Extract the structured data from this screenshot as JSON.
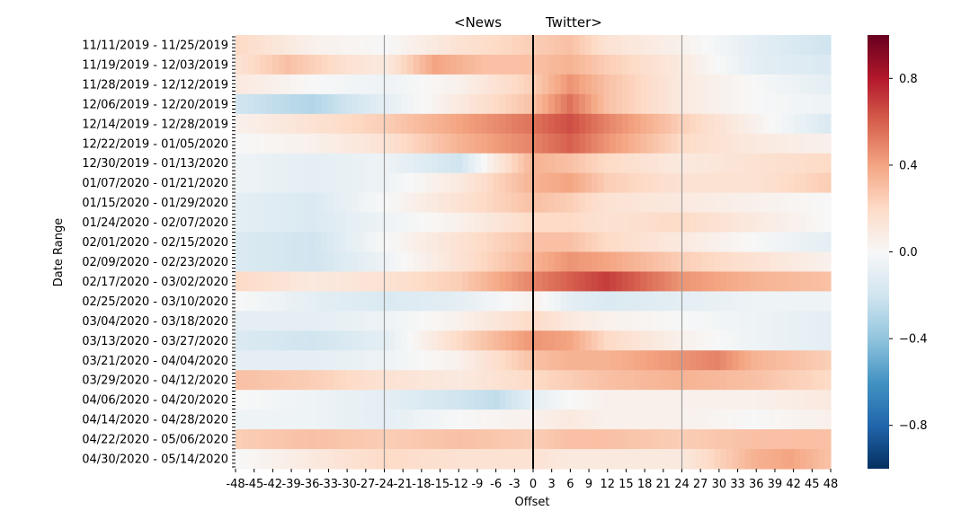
{
  "chart_data": {
    "type": "heatmap",
    "title_left": "<News",
    "title_right": "Twitter>",
    "xlabel": "Offset",
    "ylabel": "Date Range",
    "x_tick_labels": [
      "-48",
      "-45",
      "-42",
      "-39",
      "-36",
      "-33",
      "-30",
      "-27",
      "-24",
      "-21",
      "-18",
      "-15",
      "-12",
      "-9",
      "-6",
      "-3",
      "0",
      "3",
      "6",
      "9",
      "12",
      "15",
      "18",
      "21",
      "24",
      "27",
      "30",
      "33",
      "36",
      "39",
      "42",
      "45",
      "48"
    ],
    "y_tick_labels": [
      "11/11/2019 - 11/25/2019",
      "11/19/2019 - 12/03/2019",
      "11/28/2019 - 12/12/2019",
      "12/06/2019 - 12/20/2019",
      "12/14/2019 - 12/28/2019",
      "12/22/2019 - 01/05/2020",
      "12/30/2019 - 01/13/2020",
      "01/07/2020 - 01/21/2020",
      "01/15/2020 - 01/29/2020",
      "01/24/2020 - 02/07/2020",
      "02/01/2020 - 02/15/2020",
      "02/09/2020 - 02/23/2020",
      "02/17/2020 - 03/02/2020",
      "02/25/2020 - 03/10/2020",
      "03/04/2020 - 03/18/2020",
      "03/13/2020 - 03/27/2020",
      "03/21/2020 - 04/04/2020",
      "03/29/2020 - 04/12/2020",
      "04/06/2020 - 04/20/2020",
      "04/14/2020 - 04/28/2020",
      "04/22/2020 - 05/06/2020",
      "04/30/2020 - 05/14/2020"
    ],
    "x_range": [
      -48,
      48
    ],
    "vlines": [
      -24,
      0,
      24
    ],
    "colorbar": {
      "min": -1.0,
      "max": 1.0,
      "ticks": [
        "0.8",
        "0.4",
        "0.0",
        "−0.4",
        "−0.8"
      ],
      "tick_values": [
        0.8,
        0.4,
        0.0,
        -0.4,
        -0.8
      ],
      "colormap": "RdBu_r"
    },
    "rows": [
      {
        "label": "11/11/2019 - 11/25/2019",
        "anchors": [
          [
            -48,
            0.2
          ],
          [
            -36,
            0.05
          ],
          [
            -24,
            0.0
          ],
          [
            -12,
            0.15
          ],
          [
            0,
            0.25
          ],
          [
            6,
            0.3
          ],
          [
            12,
            0.15
          ],
          [
            24,
            0.05
          ],
          [
            36,
            -0.1
          ],
          [
            48,
            -0.2
          ]
        ]
      },
      {
        "label": "11/19/2019 - 12/03/2019",
        "anchors": [
          [
            -48,
            0.15
          ],
          [
            -40,
            0.3
          ],
          [
            -30,
            0.15
          ],
          [
            -24,
            0.1
          ],
          [
            -16,
            0.4
          ],
          [
            -8,
            0.3
          ],
          [
            0,
            0.3
          ],
          [
            6,
            0.35
          ],
          [
            12,
            0.25
          ],
          [
            24,
            0.1
          ],
          [
            36,
            -0.1
          ],
          [
            48,
            -0.15
          ]
        ]
      },
      {
        "label": "11/28/2019 - 12/12/2019",
        "anchors": [
          [
            -48,
            0.1
          ],
          [
            -36,
            0.0
          ],
          [
            -24,
            -0.05
          ],
          [
            -12,
            0.05
          ],
          [
            0,
            0.25
          ],
          [
            6,
            0.45
          ],
          [
            12,
            0.3
          ],
          [
            24,
            0.1
          ],
          [
            36,
            0.0
          ],
          [
            48,
            -0.1
          ]
        ]
      },
      {
        "label": "12/06/2019 - 12/20/2019",
        "anchors": [
          [
            -48,
            -0.2
          ],
          [
            -36,
            -0.3
          ],
          [
            -24,
            -0.1
          ],
          [
            -12,
            0.1
          ],
          [
            0,
            0.3
          ],
          [
            6,
            0.55
          ],
          [
            12,
            0.3
          ],
          [
            24,
            0.1
          ],
          [
            36,
            0.0
          ],
          [
            48,
            -0.05
          ]
        ]
      },
      {
        "label": "12/14/2019 - 12/28/2019",
        "anchors": [
          [
            -48,
            0.05
          ],
          [
            -36,
            0.15
          ],
          [
            -24,
            0.25
          ],
          [
            -12,
            0.4
          ],
          [
            0,
            0.55
          ],
          [
            6,
            0.65
          ],
          [
            12,
            0.5
          ],
          [
            24,
            0.25
          ],
          [
            36,
            0.05
          ],
          [
            48,
            -0.15
          ]
        ]
      },
      {
        "label": "12/22/2019 - 01/05/2020",
        "anchors": [
          [
            -48,
            0.0
          ],
          [
            -36,
            0.05
          ],
          [
            -24,
            0.15
          ],
          [
            -12,
            0.35
          ],
          [
            0,
            0.5
          ],
          [
            6,
            0.6
          ],
          [
            12,
            0.45
          ],
          [
            24,
            0.2
          ],
          [
            36,
            0.1
          ],
          [
            48,
            0.05
          ]
        ]
      },
      {
        "label": "12/30/2019 - 01/13/2020",
        "anchors": [
          [
            -48,
            -0.05
          ],
          [
            -36,
            -0.1
          ],
          [
            -24,
            -0.05
          ],
          [
            -12,
            -0.2
          ],
          [
            -6,
            0.1
          ],
          [
            0,
            0.35
          ],
          [
            6,
            0.3
          ],
          [
            12,
            0.2
          ],
          [
            24,
            0.1
          ],
          [
            36,
            0.15
          ],
          [
            48,
            0.2
          ]
        ]
      },
      {
        "label": "01/07/2020 - 01/21/2020",
        "anchors": [
          [
            -48,
            -0.05
          ],
          [
            -36,
            -0.1
          ],
          [
            -24,
            -0.05
          ],
          [
            -12,
            0.1
          ],
          [
            0,
            0.35
          ],
          [
            6,
            0.4
          ],
          [
            12,
            0.25
          ],
          [
            24,
            0.15
          ],
          [
            36,
            0.15
          ],
          [
            48,
            0.25
          ]
        ]
      },
      {
        "label": "01/15/2020 - 01/29/2020",
        "anchors": [
          [
            -48,
            -0.1
          ],
          [
            -36,
            -0.15
          ],
          [
            -24,
            0.0
          ],
          [
            -12,
            0.15
          ],
          [
            0,
            0.3
          ],
          [
            6,
            0.25
          ],
          [
            12,
            0.15
          ],
          [
            24,
            0.1
          ],
          [
            36,
            0.05
          ],
          [
            48,
            0.0
          ]
        ]
      },
      {
        "label": "01/24/2020 - 02/07/2020",
        "anchors": [
          [
            -48,
            -0.1
          ],
          [
            -36,
            -0.15
          ],
          [
            -24,
            -0.05
          ],
          [
            -12,
            0.05
          ],
          [
            0,
            0.2
          ],
          [
            6,
            0.2
          ],
          [
            12,
            0.15
          ],
          [
            24,
            0.2
          ],
          [
            36,
            0.1
          ],
          [
            48,
            0.0
          ]
        ]
      },
      {
        "label": "02/01/2020 - 02/15/2020",
        "anchors": [
          [
            -48,
            -0.15
          ],
          [
            -36,
            -0.2
          ],
          [
            -24,
            0.0
          ],
          [
            -12,
            0.15
          ],
          [
            0,
            0.3
          ],
          [
            6,
            0.3
          ],
          [
            12,
            0.2
          ],
          [
            24,
            0.1
          ],
          [
            36,
            0.0
          ],
          [
            48,
            -0.1
          ]
        ]
      },
      {
        "label": "02/09/2020 - 02/23/2020",
        "anchors": [
          [
            -48,
            -0.15
          ],
          [
            -36,
            -0.2
          ],
          [
            -24,
            -0.05
          ],
          [
            -12,
            0.15
          ],
          [
            0,
            0.35
          ],
          [
            6,
            0.45
          ],
          [
            12,
            0.4
          ],
          [
            24,
            0.25
          ],
          [
            36,
            0.15
          ],
          [
            48,
            0.05
          ]
        ]
      },
      {
        "label": "02/17/2020 - 03/02/2020",
        "anchors": [
          [
            -48,
            0.2
          ],
          [
            -36,
            0.1
          ],
          [
            -24,
            0.15
          ],
          [
            -12,
            0.25
          ],
          [
            0,
            0.5
          ],
          [
            6,
            0.6
          ],
          [
            12,
            0.7
          ],
          [
            24,
            0.45
          ],
          [
            36,
            0.35
          ],
          [
            48,
            0.3
          ]
        ]
      },
      {
        "label": "02/25/2020 - 03/10/2020",
        "anchors": [
          [
            -48,
            0.0
          ],
          [
            -36,
            -0.1
          ],
          [
            -24,
            -0.15
          ],
          [
            -12,
            -0.1
          ],
          [
            0,
            0.05
          ],
          [
            6,
            -0.1
          ],
          [
            12,
            -0.15
          ],
          [
            24,
            -0.1
          ],
          [
            36,
            -0.05
          ],
          [
            48,
            -0.05
          ]
        ]
      },
      {
        "label": "03/04/2020 - 03/18/2020",
        "anchors": [
          [
            -48,
            -0.1
          ],
          [
            -36,
            -0.1
          ],
          [
            -24,
            -0.05
          ],
          [
            -12,
            0.05
          ],
          [
            0,
            0.2
          ],
          [
            6,
            0.1
          ],
          [
            12,
            0.05
          ],
          [
            24,
            0.0
          ],
          [
            36,
            -0.05
          ],
          [
            48,
            -0.1
          ]
        ]
      },
      {
        "label": "03/13/2020 - 03/27/2020",
        "anchors": [
          [
            -48,
            -0.15
          ],
          [
            -36,
            -0.2
          ],
          [
            -24,
            -0.1
          ],
          [
            -12,
            0.2
          ],
          [
            0,
            0.45
          ],
          [
            6,
            0.4
          ],
          [
            12,
            0.2
          ],
          [
            24,
            0.05
          ],
          [
            36,
            -0.05
          ],
          [
            48,
            -0.1
          ]
        ]
      },
      {
        "label": "03/21/2020 - 04/04/2020",
        "anchors": [
          [
            -48,
            -0.1
          ],
          [
            -36,
            -0.1
          ],
          [
            -24,
            -0.05
          ],
          [
            -12,
            0.05
          ],
          [
            0,
            0.3
          ],
          [
            6,
            0.35
          ],
          [
            12,
            0.35
          ],
          [
            24,
            0.45
          ],
          [
            30,
            0.5
          ],
          [
            36,
            0.35
          ],
          [
            48,
            0.25
          ]
        ]
      },
      {
        "label": "03/29/2020 - 04/12/2020",
        "anchors": [
          [
            -48,
            0.3
          ],
          [
            -36,
            0.25
          ],
          [
            -24,
            0.15
          ],
          [
            -12,
            0.1
          ],
          [
            0,
            0.2
          ],
          [
            6,
            0.25
          ],
          [
            12,
            0.3
          ],
          [
            24,
            0.35
          ],
          [
            36,
            0.3
          ],
          [
            48,
            0.2
          ]
        ]
      },
      {
        "label": "04/06/2020 - 04/20/2020",
        "anchors": [
          [
            -48,
            0.0
          ],
          [
            -36,
            -0.05
          ],
          [
            -24,
            -0.1
          ],
          [
            -12,
            -0.2
          ],
          [
            -6,
            -0.25
          ],
          [
            0,
            -0.1
          ],
          [
            6,
            0.0
          ],
          [
            12,
            0.05
          ],
          [
            24,
            0.05
          ],
          [
            36,
            0.05
          ],
          [
            48,
            0.1
          ]
        ]
      },
      {
        "label": "04/14/2020 - 04/28/2020",
        "anchors": [
          [
            -48,
            -0.05
          ],
          [
            -36,
            -0.05
          ],
          [
            -24,
            -0.1
          ],
          [
            -12,
            0.0
          ],
          [
            0,
            0.05
          ],
          [
            6,
            0.1
          ],
          [
            12,
            0.05
          ],
          [
            24,
            0.05
          ],
          [
            36,
            0.0
          ],
          [
            48,
            0.05
          ]
        ]
      },
      {
        "label": "04/22/2020 - 05/06/2020",
        "anchors": [
          [
            -48,
            0.25
          ],
          [
            -36,
            0.3
          ],
          [
            -24,
            0.25
          ],
          [
            -12,
            0.3
          ],
          [
            0,
            0.25
          ],
          [
            6,
            0.3
          ],
          [
            12,
            0.3
          ],
          [
            24,
            0.25
          ],
          [
            36,
            0.3
          ],
          [
            48,
            0.3
          ]
        ]
      },
      {
        "label": "04/30/2020 - 05/14/2020",
        "anchors": [
          [
            -48,
            0.0
          ],
          [
            -36,
            0.1
          ],
          [
            -24,
            0.2
          ],
          [
            -12,
            0.15
          ],
          [
            0,
            0.15
          ],
          [
            6,
            0.1
          ],
          [
            12,
            0.1
          ],
          [
            24,
            0.1
          ],
          [
            36,
            0.35
          ],
          [
            42,
            0.4
          ],
          [
            48,
            0.3
          ]
        ]
      }
    ]
  }
}
